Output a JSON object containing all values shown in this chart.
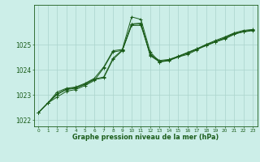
{
  "title": "Graphe pression niveau de la mer (hPa)",
  "background_color": "#cceee8",
  "grid_color": "#aad4cc",
  "line_color": "#1a5c1a",
  "xlim": [
    -0.5,
    23.5
  ],
  "ylim": [
    1021.75,
    1026.6
  ],
  "xticks": [
    0,
    1,
    2,
    3,
    4,
    5,
    6,
    7,
    8,
    9,
    10,
    11,
    12,
    13,
    14,
    15,
    16,
    17,
    18,
    19,
    20,
    21,
    22,
    23
  ],
  "yticks": [
    1022,
    1023,
    1024,
    1025
  ],
  "series": [
    [
      1022.3,
      1022.68,
      1022.92,
      1023.15,
      1023.22,
      1023.38,
      1023.58,
      1024.08,
      1024.72,
      1024.78,
      1025.78,
      1025.78,
      1024.62,
      1024.38,
      1024.42,
      1024.55,
      1024.7,
      1024.85,
      1025.02,
      1025.18,
      1025.32,
      1025.48,
      1025.58,
      1025.62
    ],
    [
      1022.3,
      1022.68,
      1023.02,
      1023.22,
      1023.27,
      1023.42,
      1023.62,
      1023.68,
      1024.42,
      1024.77,
      1025.82,
      1025.84,
      1024.57,
      1024.32,
      1024.37,
      1024.52,
      1024.67,
      1024.82,
      1024.97,
      1025.12,
      1025.27,
      1025.44,
      1025.52,
      1025.57
    ],
    [
      1022.3,
      1022.68,
      1023.05,
      1023.24,
      1023.3,
      1023.44,
      1023.64,
      1023.72,
      1024.47,
      1024.8,
      1025.84,
      1025.87,
      1024.6,
      1024.34,
      1024.4,
      1024.54,
      1024.69,
      1024.84,
      1024.99,
      1025.14,
      1025.29,
      1025.46,
      1025.54,
      1025.59
    ],
    [
      1022.3,
      1022.68,
      1023.12,
      1023.27,
      1023.32,
      1023.47,
      1023.67,
      1024.12,
      1024.77,
      1024.82,
      1026.12,
      1026.02,
      1024.72,
      1024.32,
      1024.4,
      1024.52,
      1024.62,
      1024.8,
      1025.02,
      1025.12,
      1025.24,
      1025.42,
      1025.54,
      1025.6
    ]
  ]
}
